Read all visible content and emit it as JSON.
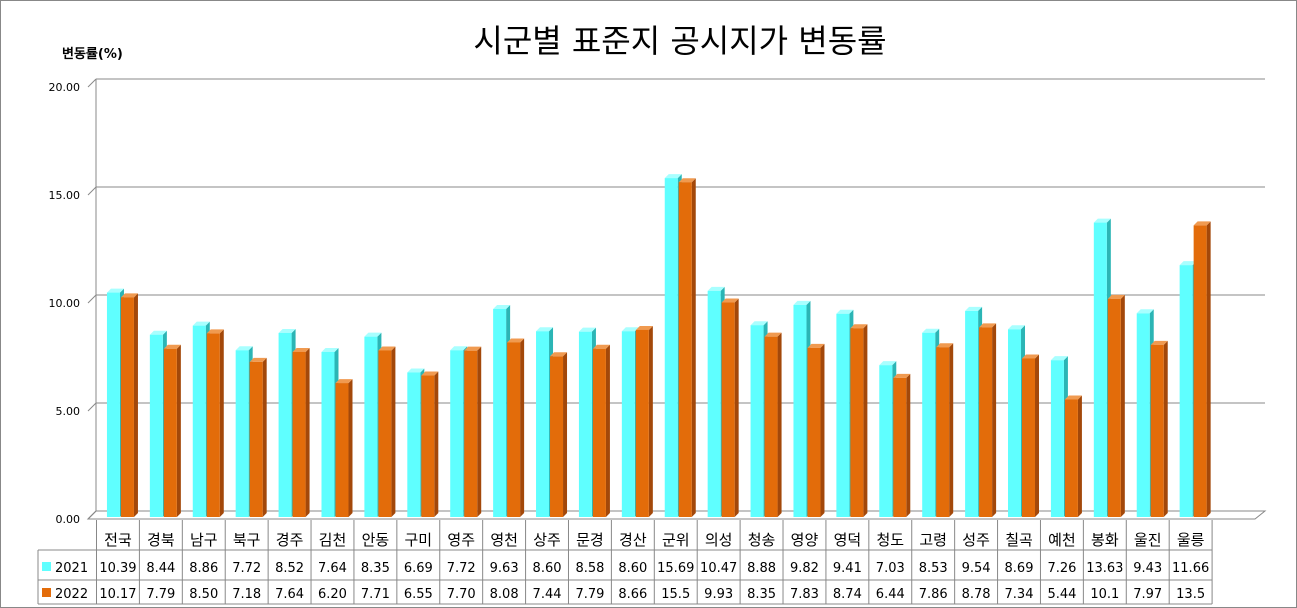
{
  "chart_data": {
    "type": "bar",
    "title": "시군별 표준지 공시지가 변동률",
    "ylabel": "변동률(%)",
    "xlabel": "",
    "ylim": [
      0,
      20
    ],
    "yticks": [
      "0.00",
      "5.00",
      "10.00",
      "15.00",
      "20.00"
    ],
    "grid": true,
    "legend": "data-table-left",
    "categories": [
      "전국",
      "경북",
      "남구",
      "북구",
      "경주",
      "김천",
      "안동",
      "구미",
      "영주",
      "영천",
      "상주",
      "문경",
      "경산",
      "군위",
      "의성",
      "청송",
      "영양",
      "영덕",
      "청도",
      "고령",
      "성주",
      "칠곡",
      "예천",
      "봉화",
      "울진",
      "울릉"
    ],
    "series": [
      {
        "name": "2021",
        "color": "#5FFFFF",
        "labels": [
          "10.39",
          "8.44",
          "8.86",
          "7.72",
          "8.52",
          "7.64",
          "8.35",
          "6.69",
          "7.72",
          "9.63",
          "8.60",
          "8.58",
          "8.60",
          "15.69",
          "10.47",
          "8.88",
          "9.82",
          "9.41",
          "7.03",
          "8.53",
          "9.54",
          "8.69",
          "7.26",
          "13.63",
          "9.43",
          "11.66"
        ],
        "values": [
          10.39,
          8.44,
          8.86,
          7.72,
          8.52,
          7.64,
          8.35,
          6.69,
          7.72,
          9.63,
          8.6,
          8.58,
          8.6,
          15.69,
          10.47,
          8.88,
          9.82,
          9.41,
          7.03,
          8.53,
          9.54,
          8.69,
          7.26,
          13.63,
          9.43,
          11.66
        ]
      },
      {
        "name": "2022",
        "color": "#E36C0A",
        "labels": [
          "10.17",
          "7.79",
          "8.50",
          "7.18",
          "7.64",
          "6.20",
          "7.71",
          "6.55",
          "7.70",
          "8.08",
          "7.44",
          "7.79",
          "8.66",
          "15.5",
          "9.93",
          "8.35",
          "7.83",
          "8.74",
          "6.44",
          "7.86",
          "8.78",
          "7.34",
          "5.44",
          "10.1",
          "7.97",
          "13.5"
        ],
        "values": [
          10.17,
          7.79,
          8.5,
          7.18,
          7.64,
          6.2,
          7.71,
          6.55,
          7.7,
          8.08,
          7.44,
          7.79,
          8.66,
          15.5,
          9.93,
          8.35,
          7.83,
          8.74,
          6.44,
          7.86,
          8.78,
          7.34,
          5.44,
          10.1,
          7.97,
          13.5
        ]
      }
    ]
  }
}
